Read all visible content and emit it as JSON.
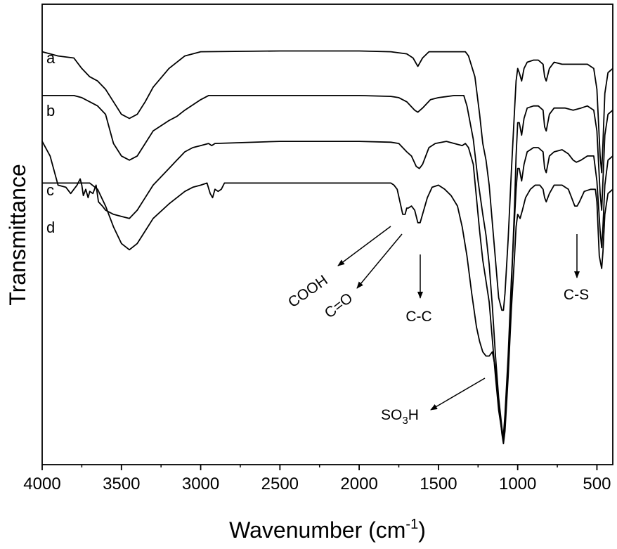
{
  "chart_data": {
    "type": "line",
    "xlabel": "Wavenumber (cm",
    "xlabel_sup": "-1",
    "xlabel_close": ")",
    "ylabel": "Transmittance",
    "xlim": [
      4000,
      400
    ],
    "x_reversed": true,
    "x_ticks": [
      {
        "value": 4000,
        "label": "4000"
      },
      {
        "value": 3500,
        "label": "3500"
      },
      {
        "value": 3000,
        "label": "3000"
      },
      {
        "value": 2500,
        "label": "2500"
      },
      {
        "value": 2000,
        "label": "2000"
      },
      {
        "value": 1500,
        "label": "1500"
      },
      {
        "value": 1000,
        "label": "1000"
      },
      {
        "value": 500,
        "label": "500"
      }
    ],
    "ylim": [
      0,
      100
    ],
    "y_ticks_shown": false,
    "grid": false,
    "series": [
      {
        "name": "a",
        "points": [
          [
            4000,
            95
          ],
          [
            3900,
            94
          ],
          [
            3800,
            93.5
          ],
          [
            3750,
            91
          ],
          [
            3700,
            89
          ],
          [
            3650,
            88
          ],
          [
            3600,
            86
          ],
          [
            3550,
            83
          ],
          [
            3500,
            80
          ],
          [
            3450,
            79
          ],
          [
            3400,
            80
          ],
          [
            3350,
            83
          ],
          [
            3300,
            86.5
          ],
          [
            3200,
            91
          ],
          [
            3100,
            94
          ],
          [
            3000,
            95
          ],
          [
            2500,
            95.2
          ],
          [
            2000,
            95.2
          ],
          [
            1800,
            95
          ],
          [
            1700,
            94.5
          ],
          [
            1660,
            93.5
          ],
          [
            1630,
            91.5
          ],
          [
            1600,
            93.5
          ],
          [
            1560,
            95
          ],
          [
            1400,
            95
          ],
          [
            1330,
            95
          ],
          [
            1310,
            94
          ],
          [
            1270,
            89
          ],
          [
            1240,
            80
          ],
          [
            1220,
            73
          ],
          [
            1200,
            69
          ],
          [
            1180,
            63
          ],
          [
            1160,
            54
          ],
          [
            1140,
            45
          ],
          [
            1120,
            36
          ],
          [
            1100,
            33
          ],
          [
            1090,
            33
          ],
          [
            1080,
            37
          ],
          [
            1060,
            50
          ],
          [
            1040,
            66
          ],
          [
            1020,
            81
          ],
          [
            1010,
            88
          ],
          [
            1000,
            91
          ],
          [
            990,
            90
          ],
          [
            975,
            88
          ],
          [
            960,
            91
          ],
          [
            940,
            92.5
          ],
          [
            900,
            93
          ],
          [
            870,
            93
          ],
          [
            840,
            92
          ],
          [
            830,
            89
          ],
          [
            820,
            88
          ],
          [
            800,
            91
          ],
          [
            770,
            92.5
          ],
          [
            720,
            92
          ],
          [
            650,
            92
          ],
          [
            600,
            92
          ],
          [
            560,
            92
          ],
          [
            520,
            91
          ],
          [
            500,
            86
          ],
          [
            480,
            70
          ],
          [
            470,
            66
          ],
          [
            462,
            73
          ],
          [
            450,
            85
          ],
          [
            430,
            90
          ],
          [
            400,
            91
          ]
        ]
      },
      {
        "name": "b",
        "points": [
          [
            4000,
            84.5
          ],
          [
            3900,
            84.5
          ],
          [
            3800,
            84.5
          ],
          [
            3750,
            84
          ],
          [
            3700,
            83
          ],
          [
            3650,
            82
          ],
          [
            3600,
            80
          ],
          [
            3550,
            73
          ],
          [
            3500,
            70
          ],
          [
            3450,
            69
          ],
          [
            3400,
            70
          ],
          [
            3350,
            73
          ],
          [
            3300,
            76
          ],
          [
            3200,
            78.5
          ],
          [
            3150,
            79.5
          ],
          [
            3100,
            81
          ],
          [
            3000,
            83.5
          ],
          [
            2950,
            84.5
          ],
          [
            2500,
            84.5
          ],
          [
            2000,
            84.5
          ],
          [
            1800,
            84.3
          ],
          [
            1750,
            84
          ],
          [
            1700,
            83
          ],
          [
            1650,
            81
          ],
          [
            1630,
            80.5
          ],
          [
            1600,
            81.5
          ],
          [
            1550,
            83.5
          ],
          [
            1500,
            84
          ],
          [
            1400,
            84.5
          ],
          [
            1340,
            84.5
          ],
          [
            1320,
            82
          ],
          [
            1280,
            74
          ],
          [
            1250,
            64
          ],
          [
            1220,
            56
          ],
          [
            1200,
            51
          ],
          [
            1180,
            44
          ],
          [
            1160,
            34
          ],
          [
            1140,
            22
          ],
          [
            1120,
            12
          ],
          [
            1100,
            5
          ],
          [
            1090,
            2
          ],
          [
            1080,
            5
          ],
          [
            1060,
            20
          ],
          [
            1040,
            38
          ],
          [
            1020,
            58
          ],
          [
            1010,
            70
          ],
          [
            1000,
            78
          ],
          [
            990,
            78
          ],
          [
            975,
            75
          ],
          [
            960,
            79
          ],
          [
            940,
            81.5
          ],
          [
            900,
            82
          ],
          [
            870,
            82
          ],
          [
            840,
            81
          ],
          [
            830,
            77
          ],
          [
            820,
            76
          ],
          [
            800,
            80
          ],
          [
            770,
            81.5
          ],
          [
            700,
            81.5
          ],
          [
            650,
            81
          ],
          [
            600,
            81.5
          ],
          [
            560,
            82
          ],
          [
            520,
            81
          ],
          [
            500,
            76
          ],
          [
            480,
            61
          ],
          [
            470,
            57
          ],
          [
            462,
            64
          ],
          [
            450,
            75
          ],
          [
            430,
            80
          ],
          [
            400,
            81
          ]
        ]
      },
      {
        "name": "c",
        "points": [
          [
            4000,
            73.5
          ],
          [
            3950,
            70
          ],
          [
            3900,
            63
          ],
          [
            3850,
            62.5
          ],
          [
            3820,
            61
          ],
          [
            3800,
            62
          ],
          [
            3780,
            63
          ],
          [
            3760,
            64.5
          ],
          [
            3750,
            63
          ],
          [
            3740,
            60.5
          ],
          [
            3725,
            62
          ],
          [
            3710,
            60
          ],
          [
            3700,
            61.5
          ],
          [
            3680,
            61
          ],
          [
            3660,
            63
          ],
          [
            3645,
            59
          ],
          [
            3620,
            58
          ],
          [
            3600,
            57
          ],
          [
            3550,
            56
          ],
          [
            3500,
            55.5
          ],
          [
            3450,
            55
          ],
          [
            3400,
            57
          ],
          [
            3350,
            60
          ],
          [
            3300,
            63
          ],
          [
            3200,
            67
          ],
          [
            3150,
            69
          ],
          [
            3100,
            71
          ],
          [
            3050,
            72
          ],
          [
            3000,
            72.5
          ],
          [
            2950,
            73
          ],
          [
            2930,
            72.5
          ],
          [
            2910,
            73
          ],
          [
            2500,
            73.5
          ],
          [
            2000,
            73.5
          ],
          [
            1800,
            73.3
          ],
          [
            1750,
            73
          ],
          [
            1700,
            71
          ],
          [
            1670,
            70
          ],
          [
            1640,
            67.5
          ],
          [
            1620,
            67
          ],
          [
            1600,
            68
          ],
          [
            1560,
            72
          ],
          [
            1520,
            73
          ],
          [
            1450,
            73.5
          ],
          [
            1400,
            73
          ],
          [
            1350,
            72.5
          ],
          [
            1330,
            73
          ],
          [
            1310,
            72
          ],
          [
            1280,
            68
          ],
          [
            1260,
            60
          ],
          [
            1240,
            52
          ],
          [
            1220,
            45
          ],
          [
            1200,
            40
          ],
          [
            1180,
            35
          ],
          [
            1160,
            26
          ],
          [
            1140,
            17
          ],
          [
            1120,
            9
          ],
          [
            1100,
            4
          ],
          [
            1090,
            3
          ],
          [
            1080,
            8
          ],
          [
            1060,
            22
          ],
          [
            1040,
            40
          ],
          [
            1020,
            55
          ],
          [
            1010,
            62
          ],
          [
            1000,
            67
          ],
          [
            990,
            67
          ],
          [
            975,
            64
          ],
          [
            960,
            68
          ],
          [
            940,
            71
          ],
          [
            900,
            72
          ],
          [
            870,
            72
          ],
          [
            840,
            71
          ],
          [
            830,
            67
          ],
          [
            820,
            66
          ],
          [
            800,
            70
          ],
          [
            770,
            71
          ],
          [
            720,
            71.5
          ],
          [
            680,
            70.5
          ],
          [
            650,
            69
          ],
          [
            630,
            68.5
          ],
          [
            600,
            69
          ],
          [
            560,
            70
          ],
          [
            520,
            70
          ],
          [
            500,
            64
          ],
          [
            480,
            52
          ],
          [
            470,
            48
          ],
          [
            462,
            53
          ],
          [
            450,
            63
          ],
          [
            430,
            69
          ],
          [
            400,
            70
          ]
        ]
      },
      {
        "name": "d",
        "points": [
          [
            4000,
            63.5
          ],
          [
            3900,
            63.5
          ],
          [
            3800,
            63.5
          ],
          [
            3750,
            63.5
          ],
          [
            3700,
            63.5
          ],
          [
            3650,
            62
          ],
          [
            3600,
            58
          ],
          [
            3550,
            53
          ],
          [
            3500,
            49
          ],
          [
            3450,
            47.5
          ],
          [
            3400,
            49
          ],
          [
            3350,
            52
          ],
          [
            3300,
            55
          ],
          [
            3200,
            58.5
          ],
          [
            3150,
            60
          ],
          [
            3100,
            61.5
          ],
          [
            3050,
            62.5
          ],
          [
            3000,
            63
          ],
          [
            2960,
            63.5
          ],
          [
            2940,
            61
          ],
          [
            2925,
            60
          ],
          [
            2910,
            62
          ],
          [
            2890,
            61.5
          ],
          [
            2870,
            62
          ],
          [
            2850,
            63.5
          ],
          [
            2500,
            63.5
          ],
          [
            2000,
            63.5
          ],
          [
            1800,
            63.5
          ],
          [
            1780,
            63
          ],
          [
            1760,
            62
          ],
          [
            1740,
            58.5
          ],
          [
            1725,
            56
          ],
          [
            1710,
            56
          ],
          [
            1700,
            57.5
          ],
          [
            1690,
            57.5
          ],
          [
            1670,
            58
          ],
          [
            1650,
            57
          ],
          [
            1630,
            54
          ],
          [
            1615,
            54
          ],
          [
            1600,
            56
          ],
          [
            1570,
            60
          ],
          [
            1540,
            62.5
          ],
          [
            1500,
            63
          ],
          [
            1460,
            62
          ],
          [
            1420,
            60.5
          ],
          [
            1380,
            58
          ],
          [
            1350,
            53
          ],
          [
            1320,
            46
          ],
          [
            1290,
            37
          ],
          [
            1260,
            29
          ],
          [
            1240,
            25.5
          ],
          [
            1220,
            23
          ],
          [
            1200,
            22
          ],
          [
            1180,
            22
          ],
          [
            1160,
            23
          ],
          [
            1140,
            19
          ],
          [
            1120,
            11
          ],
          [
            1100,
            3.5
          ],
          [
            1090,
            1
          ],
          [
            1080,
            4
          ],
          [
            1060,
            17
          ],
          [
            1040,
            33
          ],
          [
            1020,
            46
          ],
          [
            1010,
            53
          ],
          [
            1000,
            56
          ],
          [
            985,
            55
          ],
          [
            970,
            57
          ],
          [
            950,
            60
          ],
          [
            920,
            62
          ],
          [
            890,
            63
          ],
          [
            860,
            63
          ],
          [
            840,
            62
          ],
          [
            830,
            60
          ],
          [
            820,
            59
          ],
          [
            800,
            61
          ],
          [
            770,
            63
          ],
          [
            720,
            63
          ],
          [
            680,
            62
          ],
          [
            660,
            60
          ],
          [
            640,
            58
          ],
          [
            625,
            58
          ],
          [
            610,
            59
          ],
          [
            580,
            61.5
          ],
          [
            540,
            62
          ],
          [
            510,
            62
          ],
          [
            500,
            59
          ],
          [
            485,
            46
          ],
          [
            470,
            43
          ],
          [
            462,
            47
          ],
          [
            450,
            56
          ],
          [
            430,
            61
          ],
          [
            400,
            62
          ]
        ]
      }
    ],
    "annotations": [
      {
        "text": "COOH",
        "sub": ""
      },
      {
        "text": "C=O",
        "sub": ""
      },
      {
        "text": "C-C",
        "sub": ""
      },
      {
        "text": "C-S",
        "sub": ""
      },
      {
        "text": "SO",
        "sub": "3",
        "tail": "H"
      }
    ]
  }
}
